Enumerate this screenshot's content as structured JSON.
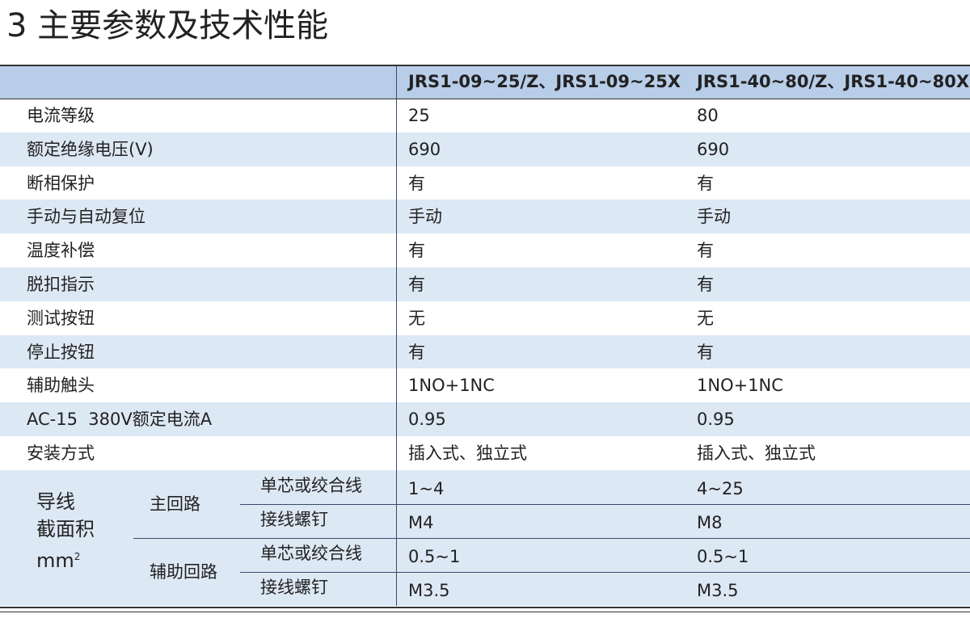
{
  "title": "3 主要参数及技术性能",
  "table": {
    "header": [
      "JRS1-09~25/Z、JRS1-09~25X",
      "JRS1-40~80/Z、JRS1-40~80X"
    ],
    "rows": [
      [
        "电流等级",
        "25",
        "80"
      ],
      [
        "额定绝缘电压(V)",
        "690",
        "690"
      ],
      [
        "断相保护",
        "有",
        "有"
      ],
      [
        "手动与自动复位",
        "手动",
        "手动"
      ],
      [
        "温度补偿",
        "有",
        "有"
      ],
      [
        "脱扣指示",
        "有",
        "有"
      ],
      [
        "测试按钮",
        "无",
        "无"
      ],
      [
        "停止按钮",
        "有",
        "有"
      ],
      [
        "辅助触头",
        "1NO+1NC",
        "1NO+1NC"
      ],
      [
        "AC-15  380V额定电流A",
        "0.95",
        "0.95"
      ],
      [
        "安装方式",
        "插入式、独立式",
        "插入式、独立式"
      ]
    ],
    "wire": {
      "label_lines": [
        "导线",
        "截面积"
      ],
      "unit": "mm",
      "unit_sup": "2",
      "groups": [
        {
          "name": "主回路",
          "rows": [
            [
              "单芯或绞合线",
              "1~4",
              "4~25"
            ],
            [
              "接线螺钉",
              "M4",
              "M8"
            ]
          ]
        },
        {
          "name": "辅助回路",
          "rows": [
            [
              "单芯或绞合线",
              "0.5~1",
              "0.5~1"
            ],
            [
              "接线螺钉",
              "M3.5",
              "M3.5"
            ]
          ]
        }
      ]
    }
  }
}
